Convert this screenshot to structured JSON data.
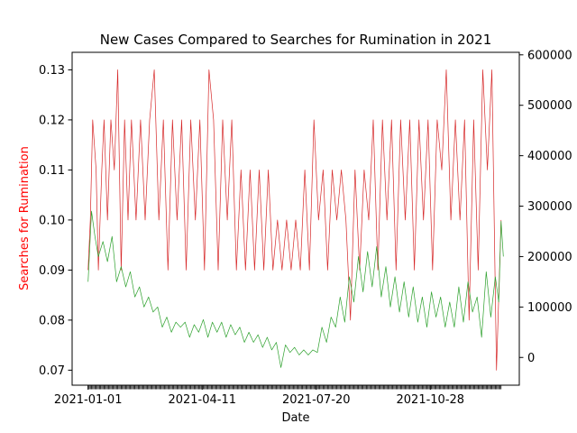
{
  "chart_data": {
    "type": "line",
    "title": "New Cases Compared to Searches for Rumination in 2021",
    "xlabel": "Date",
    "ylabel": "Searches for Rumination",
    "ylabel_color": "#ff0000",
    "x_tick_labels": [
      "2021-01-01",
      "2021-04-11",
      "2021-07-20",
      "2021-10-28"
    ],
    "x_tick_dates": [
      "2021-01-01",
      "2021-04-11",
      "2021-07-20",
      "2021-10-28"
    ],
    "x_range": [
      "2020-12-18",
      "2022-01-14"
    ],
    "y_left": {
      "range": [
        0.067,
        0.1335
      ],
      "ticks": [
        0.07,
        0.08,
        0.09,
        0.1,
        0.11,
        0.12,
        0.13
      ],
      "tick_labels": [
        "0.07",
        "0.08",
        "0.09",
        "0.10",
        "0.11",
        "0.12",
        "0.13"
      ]
    },
    "y_right": {
      "range": [
        -55000,
        605000
      ],
      "ticks": [
        0,
        100000,
        200000,
        300000,
        400000,
        500000,
        600000
      ],
      "tick_labels": [
        "0",
        "100000",
        "200000",
        "300000",
        "400000",
        "500000",
        "600000"
      ]
    },
    "grid": false,
    "series": [
      {
        "axis": "left",
        "color": "#d62728",
        "x": [
          "2021-01-01",
          "2021-01-03",
          "2021-01-05",
          "2021-01-08",
          "2021-01-10",
          "2021-01-13",
          "2021-01-15",
          "2021-01-18",
          "2021-01-21",
          "2021-01-24",
          "2021-01-27",
          "2021-01-30",
          "2021-02-02",
          "2021-02-05",
          "2021-02-08",
          "2021-02-12",
          "2021-02-16",
          "2021-02-20",
          "2021-02-24",
          "2021-02-28",
          "2021-03-04",
          "2021-03-08",
          "2021-03-12",
          "2021-03-16",
          "2021-03-20",
          "2021-03-24",
          "2021-03-28",
          "2021-04-01",
          "2021-04-05",
          "2021-04-09",
          "2021-04-13",
          "2021-04-17",
          "2021-04-21",
          "2021-04-25",
          "2021-04-29",
          "2021-05-03",
          "2021-05-07",
          "2021-05-11",
          "2021-05-15",
          "2021-05-19",
          "2021-05-23",
          "2021-05-27",
          "2021-05-31",
          "2021-06-04",
          "2021-06-08",
          "2021-06-12",
          "2021-06-16",
          "2021-06-20",
          "2021-06-24",
          "2021-06-28",
          "2021-07-02",
          "2021-07-06",
          "2021-07-10",
          "2021-07-14",
          "2021-07-18",
          "2021-07-22",
          "2021-07-26",
          "2021-07-30",
          "2021-08-03",
          "2021-08-07",
          "2021-08-11",
          "2021-08-15",
          "2021-08-19",
          "2021-08-23",
          "2021-08-27",
          "2021-08-31",
          "2021-09-04",
          "2021-09-08",
          "2021-09-12",
          "2021-09-16",
          "2021-09-20",
          "2021-09-24",
          "2021-09-28",
          "2021-10-02",
          "2021-10-06",
          "2021-10-10",
          "2021-10-14",
          "2021-10-18",
          "2021-10-22",
          "2021-10-26",
          "2021-10-30",
          "2021-11-03",
          "2021-11-07",
          "2021-11-11",
          "2021-11-15",
          "2021-11-19",
          "2021-11-23",
          "2021-11-27",
          "2021-12-01",
          "2021-12-05",
          "2021-12-09",
          "2021-12-13",
          "2021-12-17",
          "2021-12-21",
          "2021-12-25",
          "2021-12-29"
        ],
        "values": [
          0.09,
          0.1,
          0.12,
          0.11,
          0.09,
          0.11,
          0.12,
          0.1,
          0.12,
          0.11,
          0.13,
          0.09,
          0.12,
          0.1,
          0.12,
          0.1,
          0.12,
          0.1,
          0.12,
          0.13,
          0.1,
          0.12,
          0.09,
          0.12,
          0.1,
          0.12,
          0.09,
          0.12,
          0.1,
          0.12,
          0.09,
          0.13,
          0.12,
          0.09,
          0.12,
          0.1,
          0.12,
          0.09,
          0.11,
          0.09,
          0.11,
          0.09,
          0.11,
          0.09,
          0.11,
          0.09,
          0.1,
          0.09,
          0.1,
          0.09,
          0.1,
          0.09,
          0.11,
          0.09,
          0.12,
          0.1,
          0.11,
          0.09,
          0.11,
          0.1,
          0.11,
          0.1,
          0.08,
          0.11,
          0.09,
          0.11,
          0.1,
          0.12,
          0.09,
          0.12,
          0.1,
          0.12,
          0.09,
          0.12,
          0.1,
          0.12,
          0.09,
          0.12,
          0.1,
          0.12,
          0.09,
          0.12,
          0.11,
          0.13,
          0.1,
          0.12,
          0.1,
          0.12,
          0.08,
          0.12,
          0.09,
          0.13,
          0.11,
          0.13,
          0.07,
          0.1
        ]
      },
      {
        "axis": "right",
        "color": "#2ca02c",
        "x": [
          "2021-01-01",
          "2021-01-04",
          "2021-01-07",
          "2021-01-10",
          "2021-01-14",
          "2021-01-18",
          "2021-01-22",
          "2021-01-26",
          "2021-01-30",
          "2021-02-03",
          "2021-02-07",
          "2021-02-11",
          "2021-02-15",
          "2021-02-19",
          "2021-02-23",
          "2021-02-27",
          "2021-03-03",
          "2021-03-07",
          "2021-03-11",
          "2021-03-15",
          "2021-03-19",
          "2021-03-23",
          "2021-03-27",
          "2021-03-31",
          "2021-04-04",
          "2021-04-08",
          "2021-04-12",
          "2021-04-16",
          "2021-04-20",
          "2021-04-24",
          "2021-04-28",
          "2021-05-02",
          "2021-05-06",
          "2021-05-10",
          "2021-05-14",
          "2021-05-18",
          "2021-05-22",
          "2021-05-26",
          "2021-05-30",
          "2021-06-03",
          "2021-06-07",
          "2021-06-11",
          "2021-06-15",
          "2021-06-19",
          "2021-06-23",
          "2021-06-27",
          "2021-07-01",
          "2021-07-05",
          "2021-07-09",
          "2021-07-13",
          "2021-07-17",
          "2021-07-21",
          "2021-07-25",
          "2021-07-29",
          "2021-08-02",
          "2021-08-06",
          "2021-08-10",
          "2021-08-14",
          "2021-08-18",
          "2021-08-22",
          "2021-08-26",
          "2021-08-30",
          "2021-09-03",
          "2021-09-07",
          "2021-09-11",
          "2021-09-15",
          "2021-09-19",
          "2021-09-23",
          "2021-09-27",
          "2021-10-01",
          "2021-10-05",
          "2021-10-09",
          "2021-10-13",
          "2021-10-17",
          "2021-10-21",
          "2021-10-25",
          "2021-10-29",
          "2021-11-02",
          "2021-11-06",
          "2021-11-10",
          "2021-11-14",
          "2021-11-18",
          "2021-11-22",
          "2021-11-26",
          "2021-11-30",
          "2021-12-04",
          "2021-12-08",
          "2021-12-12",
          "2021-12-16",
          "2021-12-20",
          "2021-12-24",
          "2021-12-27",
          "2021-12-29",
          "2021-12-31"
        ],
        "values": [
          150000,
          290000,
          240000,
          200000,
          230000,
          190000,
          240000,
          150000,
          180000,
          140000,
          170000,
          120000,
          140000,
          100000,
          120000,
          90000,
          100000,
          60000,
          80000,
          50000,
          70000,
          60000,
          70000,
          40000,
          65000,
          50000,
          75000,
          40000,
          70000,
          50000,
          70000,
          40000,
          65000,
          45000,
          60000,
          30000,
          50000,
          30000,
          45000,
          20000,
          40000,
          15000,
          30000,
          -20000,
          25000,
          10000,
          20000,
          5000,
          15000,
          5000,
          15000,
          10000,
          60000,
          30000,
          80000,
          60000,
          120000,
          70000,
          160000,
          110000,
          200000,
          130000,
          210000,
          140000,
          220000,
          120000,
          180000,
          100000,
          160000,
          90000,
          150000,
          80000,
          140000,
          70000,
          120000,
          60000,
          130000,
          80000,
          120000,
          60000,
          110000,
          60000,
          140000,
          70000,
          150000,
          90000,
          120000,
          40000,
          170000,
          80000,
          160000,
          110000,
          270000,
          200000
        ]
      }
    ]
  }
}
